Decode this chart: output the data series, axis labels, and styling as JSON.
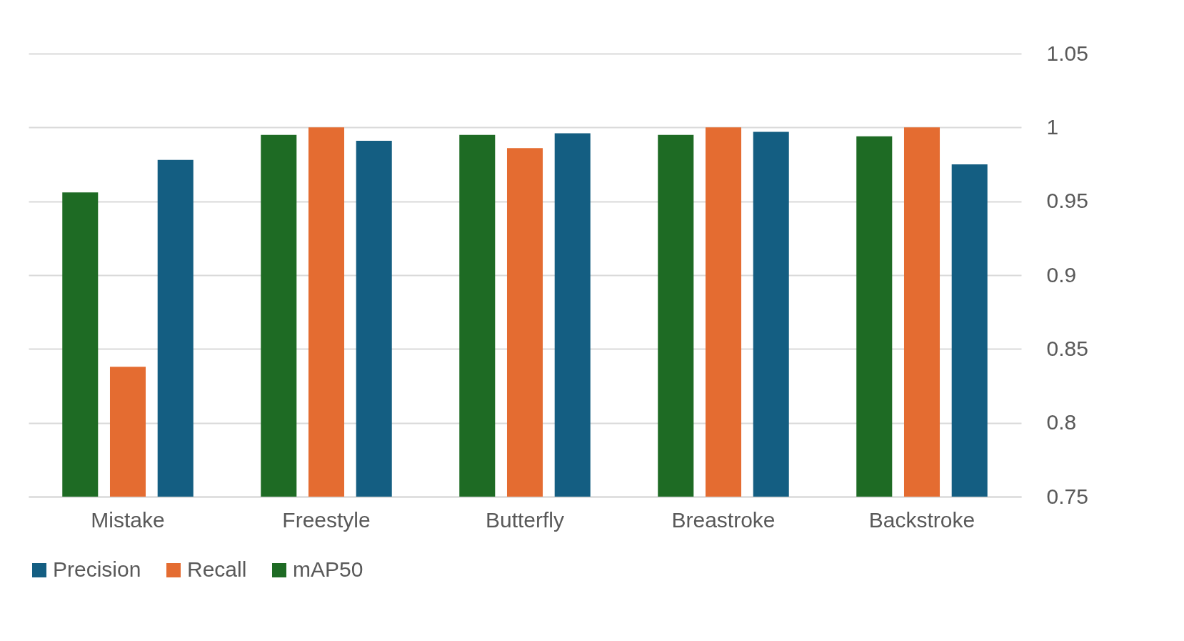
{
  "chart_data": {
    "type": "bar",
    "categories": [
      "Mistake",
      "Freestyle",
      "Butterfly",
      "Breastroke",
      "Backstroke"
    ],
    "series": [
      {
        "name": "mAP50",
        "color": "#1e6b24",
        "values": [
          0.956,
          0.995,
          0.995,
          0.995,
          0.994
        ]
      },
      {
        "name": "Recall",
        "color": "#e46c31",
        "values": [
          0.838,
          1.0,
          0.986,
          1.0,
          1.0
        ]
      },
      {
        "name": "Precision",
        "color": "#145e82",
        "values": [
          0.978,
          0.991,
          0.996,
          0.997,
          0.975
        ]
      }
    ],
    "ylim": [
      0.75,
      1.05
    ],
    "yticks": [
      0.75,
      0.8,
      0.85,
      0.9,
      0.95,
      1,
      1.05
    ],
    "grid": "y",
    "legend": "bottom"
  }
}
